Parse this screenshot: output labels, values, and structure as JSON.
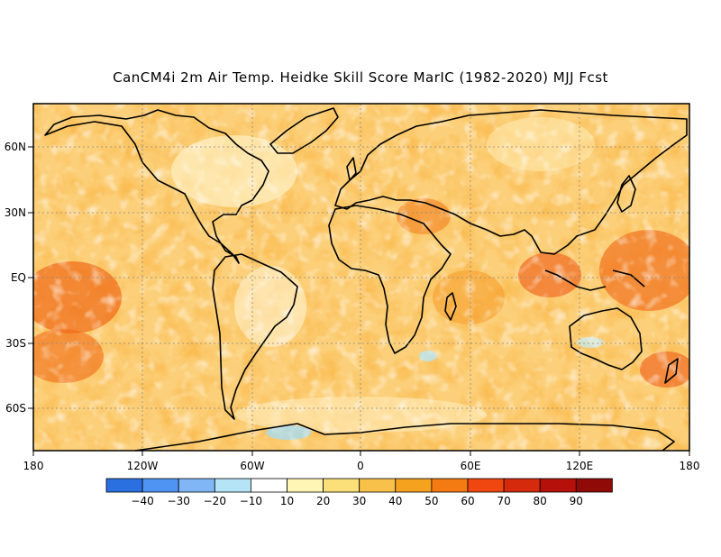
{
  "title": "CanCM4i 2m Air Temp. Heidke Skill Score MarIC (1982-2020) MJJ Fcst",
  "lat_labels": [
    "60N",
    "30N",
    "EQ",
    "30S",
    "60S"
  ],
  "lon_labels": [
    "180",
    "120W",
    "60W",
    "0",
    "60E",
    "120E",
    "180"
  ],
  "colorbar": {
    "labels": [
      "-40",
      "-30",
      "-20",
      "-10",
      "10",
      "20",
      "30",
      "40",
      "50",
      "60",
      "70",
      "80",
      "90"
    ],
    "colors": [
      "#2a70e0",
      "#4f94f2",
      "#80b6f5",
      "#b4e4f5",
      "#ffffff",
      "#fff5b4",
      "#fbe07a",
      "#f8c14a",
      "#f5a21e",
      "#f47a12",
      "#f0460f",
      "#d62a0d",
      "#b5100a",
      "#900a08"
    ]
  }
}
